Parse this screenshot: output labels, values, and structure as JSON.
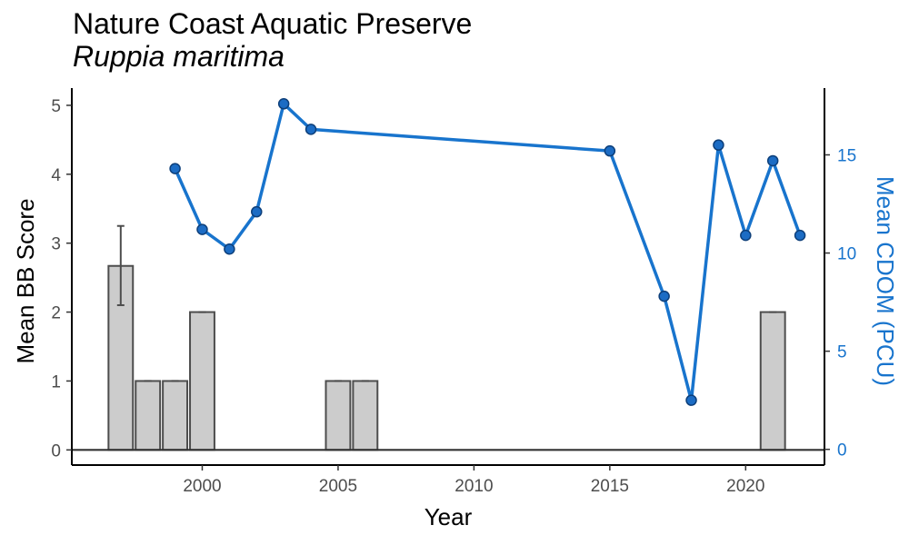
{
  "chart_data": {
    "type": "bar+line",
    "title": "Nature Coast Aquatic Preserve",
    "subtitle": "Ruppia maritima",
    "xlabel": "Year",
    "ylabel_left": "Mean BB Score",
    "ylabel_right": "Mean CDOM (PCU)",
    "xlim": [
      1995.2,
      2022.9
    ],
    "ylim_left": [
      -0.22,
      5.25
    ],
    "ylim_right": [
      -0.8,
      18.4
    ],
    "xticks": [
      2000,
      2005,
      2010,
      2015,
      2020
    ],
    "yticks_left": [
      0,
      1,
      2,
      3,
      4,
      5
    ],
    "yticks_right": [
      0,
      5,
      10,
      15
    ],
    "grid": false,
    "bars": [
      {
        "x": 1997,
        "value": 2.67,
        "err_low": 2.1,
        "err_high": 3.25
      },
      {
        "x": 1998,
        "value": 1.0,
        "err_low": 1.0,
        "err_high": 1.0
      },
      {
        "x": 1999,
        "value": 1.0,
        "err_low": 1.0,
        "err_high": 1.0
      },
      {
        "x": 2000,
        "value": 2.0,
        "err_low": 2.0,
        "err_high": 2.0
      },
      {
        "x": 2005,
        "value": 1.0,
        "err_low": 1.0,
        "err_high": 1.0
      },
      {
        "x": 2006,
        "value": 1.0,
        "err_low": 1.0,
        "err_high": 1.0
      },
      {
        "x": 2021,
        "value": 2.0,
        "err_low": 2.0,
        "err_high": 2.0
      }
    ],
    "line": {
      "x": [
        1999,
        2000,
        2001,
        2002,
        2003,
        2004,
        2015,
        2017,
        2018,
        2019,
        2020,
        2021,
        2022
      ],
      "y": [
        14.3,
        11.2,
        10.2,
        12.1,
        17.6,
        16.3,
        15.2,
        7.8,
        2.5,
        15.5,
        10.9,
        14.7,
        10.9
      ]
    },
    "colors": {
      "bar_fill": "#cccccc",
      "bar_stroke": "#4d4d4d",
      "line": "#1874cd",
      "point_fill": "#1c6cc4",
      "point_stroke": "#0d3f7a",
      "axis": "#000000",
      "right_axis_text": "#1874cd"
    }
  }
}
